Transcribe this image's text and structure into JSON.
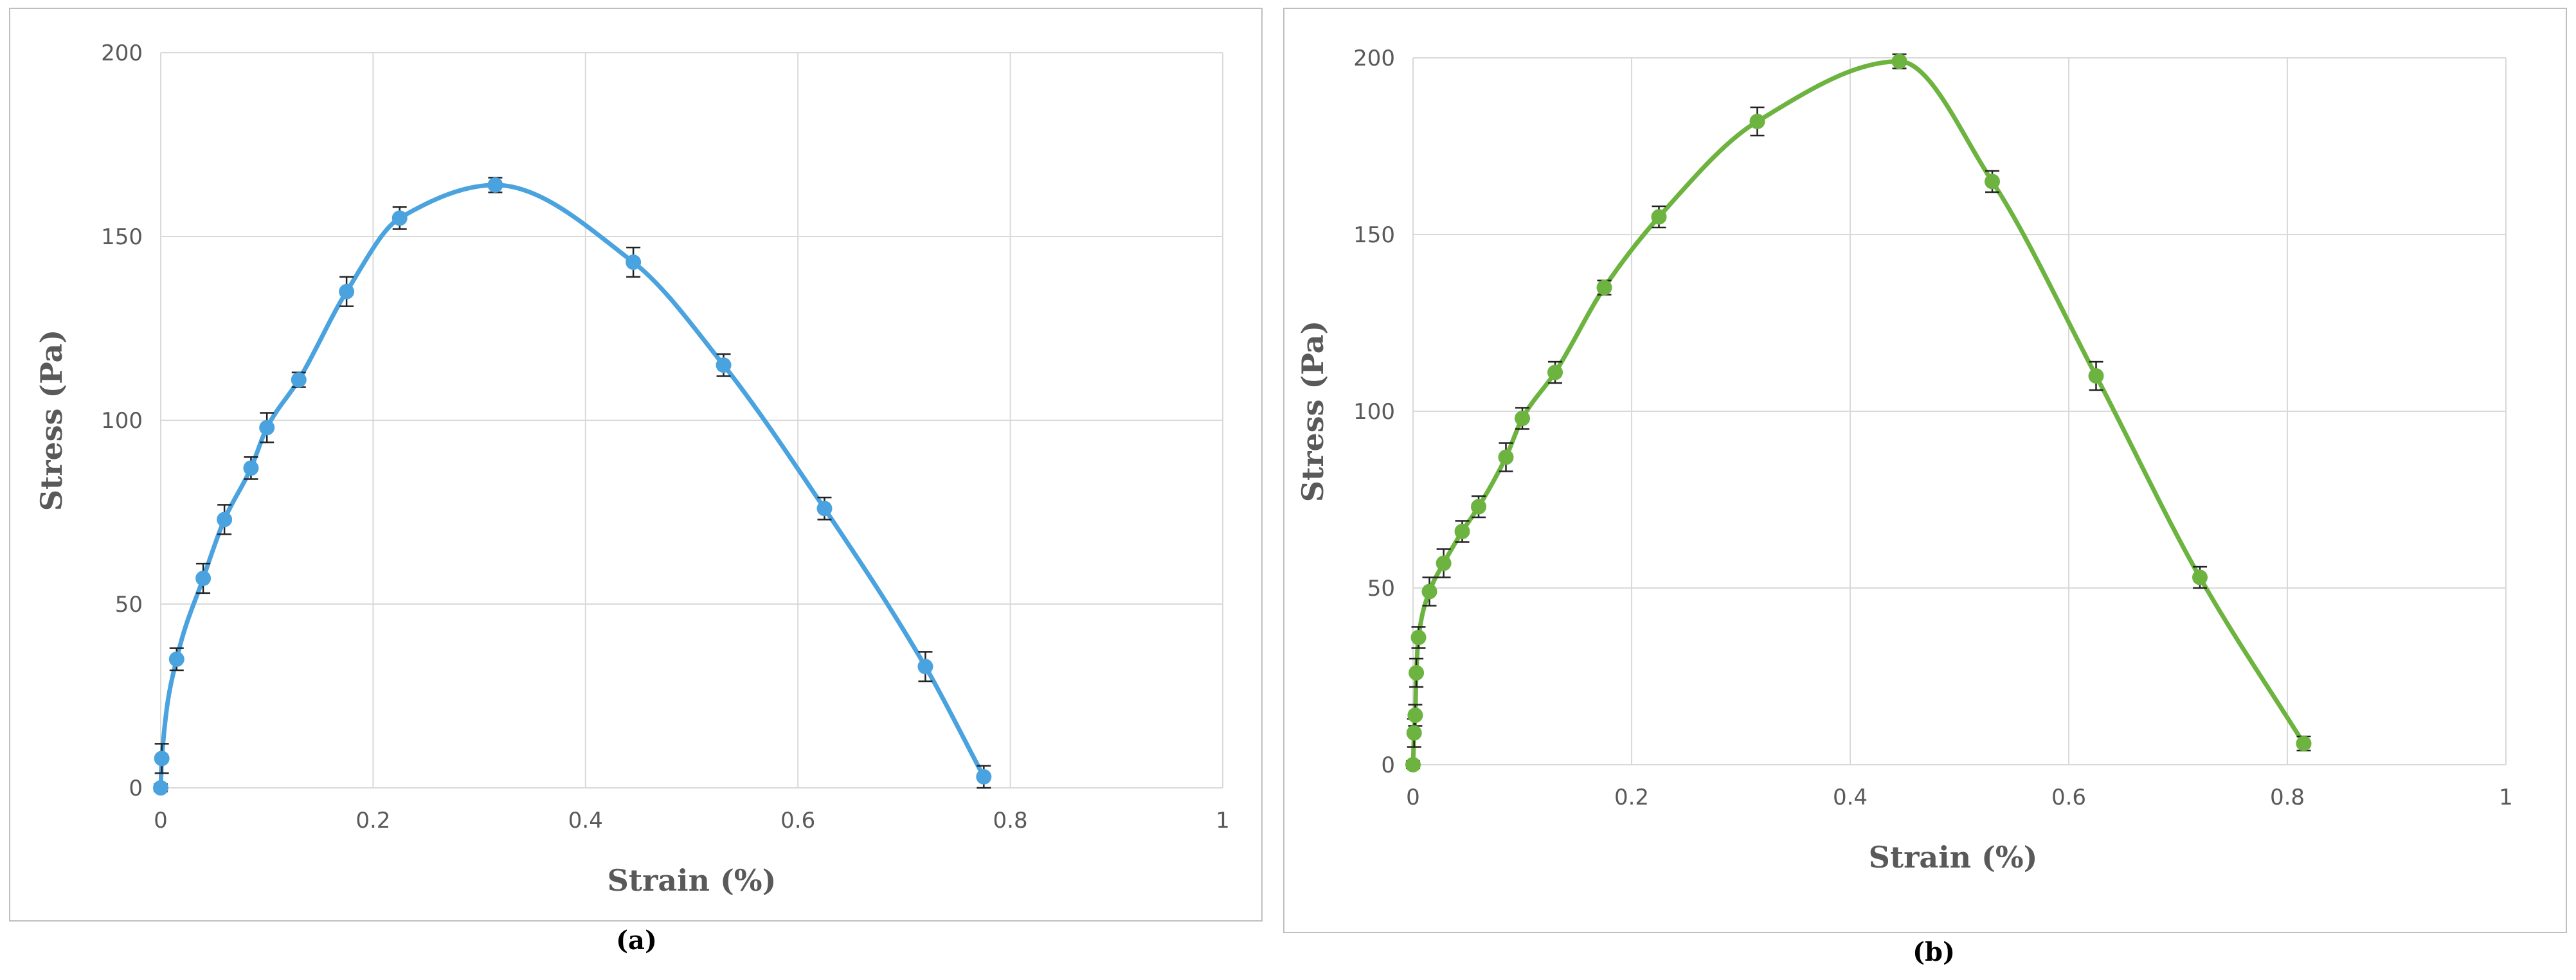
{
  "chart_data": [
    {
      "type": "line",
      "caption": "(a)",
      "xlabel": "Strain (%)",
      "ylabel": "Stress (Pa)",
      "xlim": [
        0,
        1
      ],
      "ylim": [
        0,
        200
      ],
      "xticks": [
        0,
        0.2,
        0.4,
        0.6,
        0.8,
        1
      ],
      "xtick_labels": [
        "0",
        "0.2",
        "0.4",
        "0.6",
        "0.8",
        "1"
      ],
      "yticks": [
        0,
        50,
        100,
        150,
        200
      ],
      "ytick_labels": [
        "0",
        "50",
        "100",
        "150",
        "200"
      ],
      "grid": true,
      "legend": "none",
      "color": "#4aa3df",
      "series": [
        {
          "x": [
            0.0,
            0.001,
            0.015,
            0.04,
            0.06,
            0.085,
            0.1,
            0.13,
            0.175,
            0.225,
            0.315,
            0.445,
            0.53,
            0.625,
            0.72,
            0.775
          ],
          "y": [
            0,
            8,
            35,
            57,
            73,
            87,
            98,
            111,
            135,
            155,
            164,
            143,
            115,
            76,
            33,
            3
          ],
          "error": [
            1,
            4,
            3,
            4,
            4,
            3,
            4,
            2,
            4,
            3,
            2,
            4,
            3,
            3,
            4,
            3
          ]
        }
      ]
    },
    {
      "type": "line",
      "caption": "(b)",
      "xlabel": "Strain (%)",
      "ylabel": "Stress (Pa)",
      "xlim": [
        0,
        1
      ],
      "ylim": [
        0,
        200
      ],
      "xticks": [
        0,
        0.2,
        0.4,
        0.6,
        0.8,
        1
      ],
      "xtick_labels": [
        "0",
        "0.2",
        "0.4",
        "0.6",
        "0.8",
        "1"
      ],
      "yticks": [
        0,
        50,
        100,
        150,
        200
      ],
      "ytick_labels": [
        "0",
        "50",
        "100",
        "150",
        "200"
      ],
      "grid": true,
      "legend": "none",
      "color": "#6db33f",
      "series": [
        {
          "x": [
            0.0,
            0.001,
            0.002,
            0.003,
            0.005,
            0.015,
            0.028,
            0.045,
            0.06,
            0.085,
            0.1,
            0.13,
            0.175,
            0.225,
            0.315,
            0.445,
            0.53,
            0.625,
            0.72,
            0.815
          ],
          "y": [
            0,
            9,
            14,
            26,
            36,
            49,
            57,
            66,
            73,
            87,
            98,
            111,
            135,
            155,
            182,
            199,
            165,
            110,
            53,
            6
          ],
          "error": [
            1,
            4,
            3,
            4,
            3,
            4,
            4,
            3,
            3,
            4,
            3,
            3,
            2,
            3,
            4,
            2,
            3,
            4,
            3,
            2
          ]
        }
      ]
    }
  ]
}
